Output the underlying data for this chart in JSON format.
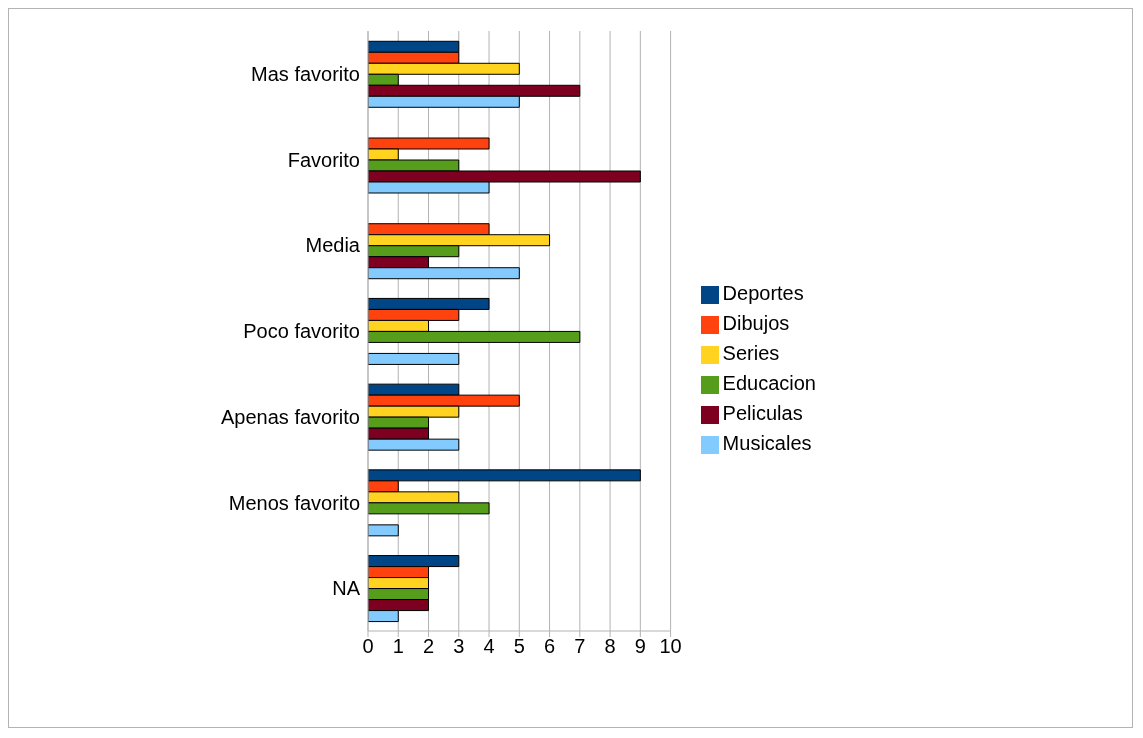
{
  "chart_data": {
    "type": "bar",
    "orientation": "horizontal",
    "categories": [
      "Mas favorito",
      "Favorito",
      "Media",
      "Poco favorito",
      "Apenas favorito",
      "Menos favorito",
      "NA"
    ],
    "series": [
      {
        "name": "Deportes",
        "color": "#004586",
        "values": [
          3,
          0,
          0,
          4,
          3,
          9,
          3
        ]
      },
      {
        "name": "Dibujos",
        "color": "#ff420e",
        "values": [
          3,
          4,
          4,
          3,
          5,
          1,
          2
        ]
      },
      {
        "name": "Series",
        "color": "#ffd320",
        "values": [
          5,
          1,
          6,
          2,
          3,
          3,
          2
        ]
      },
      {
        "name": "Educacion",
        "color": "#579d1c",
        "values": [
          1,
          3,
          3,
          7,
          2,
          4,
          2
        ]
      },
      {
        "name": "Peliculas",
        "color": "#7e0021",
        "values": [
          7,
          9,
          2,
          0,
          2,
          0,
          2
        ]
      },
      {
        "name": "Musicales",
        "color": "#83caff",
        "values": [
          5,
          4,
          5,
          3,
          3,
          1,
          1
        ]
      }
    ],
    "xlim": [
      0,
      10
    ],
    "xticks": [
      0,
      1,
      2,
      3,
      4,
      5,
      6,
      7,
      8,
      9,
      10
    ],
    "grid": "x",
    "legend": "right"
  }
}
